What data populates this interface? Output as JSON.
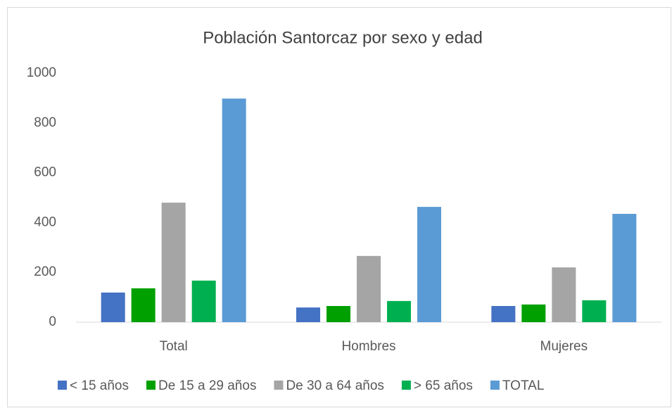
{
  "chart_data": {
    "type": "bar",
    "title": "Población Santorcaz por sexo y edad",
    "categories": [
      "Total",
      "Hombres",
      "Mujeres"
    ],
    "series": [
      {
        "name": "< 15 años",
        "color": "#4472c4",
        "values": [
          119,
          59,
          65
        ]
      },
      {
        "name": "De 15 a 29 años",
        "color": "#00a000",
        "values": [
          136,
          65,
          71
        ]
      },
      {
        "name": "De 30 a 64 años",
        "color": "#a5a5a5",
        "values": [
          480,
          266,
          220
        ]
      },
      {
        "name": "> 65 años",
        "color": "#00b050",
        "values": [
          167,
          85,
          88
        ]
      },
      {
        "name": "TOTAL",
        "color": "#5b9bd5",
        "values": [
          898,
          463,
          435
        ]
      }
    ],
    "ylim": [
      0,
      1000
    ],
    "yticks": [
      0,
      200,
      400,
      600,
      800,
      1000
    ],
    "grid": false,
    "legend": "bottom"
  }
}
